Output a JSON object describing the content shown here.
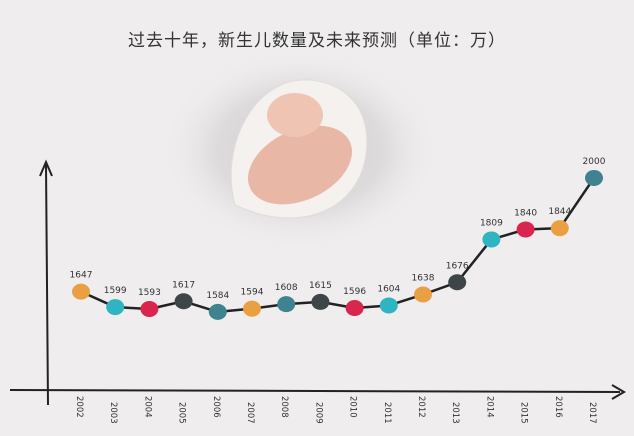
{
  "chart_data": {
    "type": "line",
    "title": "过去十年，新生儿数量及未来预测（单位：万）",
    "categories": [
      "2002",
      "2003",
      "2004",
      "2005",
      "2006",
      "2007",
      "2008",
      "2009",
      "2010",
      "2011",
      "2012",
      "2013",
      "2014",
      "2015",
      "2016",
      "2017"
    ],
    "values": [
      1647,
      1599,
      1593,
      1617,
      1584,
      1594,
      1608,
      1615,
      1596,
      1604,
      1638,
      1676,
      1809,
      1840,
      1844,
      2000
    ],
    "data_labels": [
      "1647",
      "1599",
      "1593",
      "1617",
      "1584",
      "1594",
      "1608",
      "1615",
      "1596",
      "1604",
      "1638",
      "1676",
      "1809",
      "1840",
      "1844",
      "2000"
    ],
    "point_colors": [
      "#e9a043",
      "#2fb4c1",
      "#d8264f",
      "#3d4549",
      "#3f8391",
      "#e9a043",
      "#3f8391",
      "#3d4549",
      "#d8264f",
      "#2fb4c1",
      "#e9a043",
      "#3d4549",
      "#2fb4c1",
      "#d8264f",
      "#e9a043",
      "#3f8391"
    ],
    "xlabel": "",
    "ylabel": "",
    "grid": false
  },
  "colors": {
    "line": "#222222",
    "axis": "#222222",
    "background": "#efedee"
  }
}
